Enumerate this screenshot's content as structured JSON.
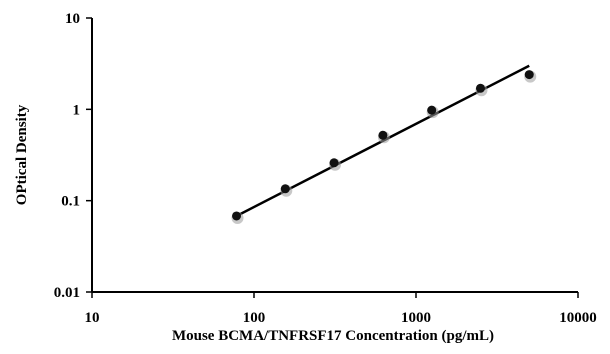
{
  "chart_data": {
    "type": "scatter",
    "xscale": "log",
    "yscale": "log",
    "xlabel": "Mouse BCMA/TNFRSF17 Concentration (pg/mL)",
    "ylabel": "OPtical Density",
    "xlim": [
      10,
      10000
    ],
    "ylim": [
      0.01,
      10
    ],
    "x_ticks": [
      10,
      100,
      1000,
      10000
    ],
    "x_tick_labels": [
      "10",
      "100",
      "1000",
      "10000"
    ],
    "y_ticks": [
      0.01,
      0.1,
      1,
      10
    ],
    "y_tick_labels": [
      "0.01",
      "0.1",
      "1",
      "10"
    ],
    "points": [
      {
        "x": 78,
        "y": 0.068
      },
      {
        "x": 156,
        "y": 0.135
      },
      {
        "x": 312,
        "y": 0.26
      },
      {
        "x": 625,
        "y": 0.52
      },
      {
        "x": 1250,
        "y": 0.98
      },
      {
        "x": 2500,
        "y": 1.7
      },
      {
        "x": 5000,
        "y": 2.4
      }
    ],
    "fit_line": [
      {
        "x": 78,
        "y": 0.068
      },
      {
        "x": 5000,
        "y": 3.0
      }
    ],
    "grid": false,
    "legend": "none"
  }
}
